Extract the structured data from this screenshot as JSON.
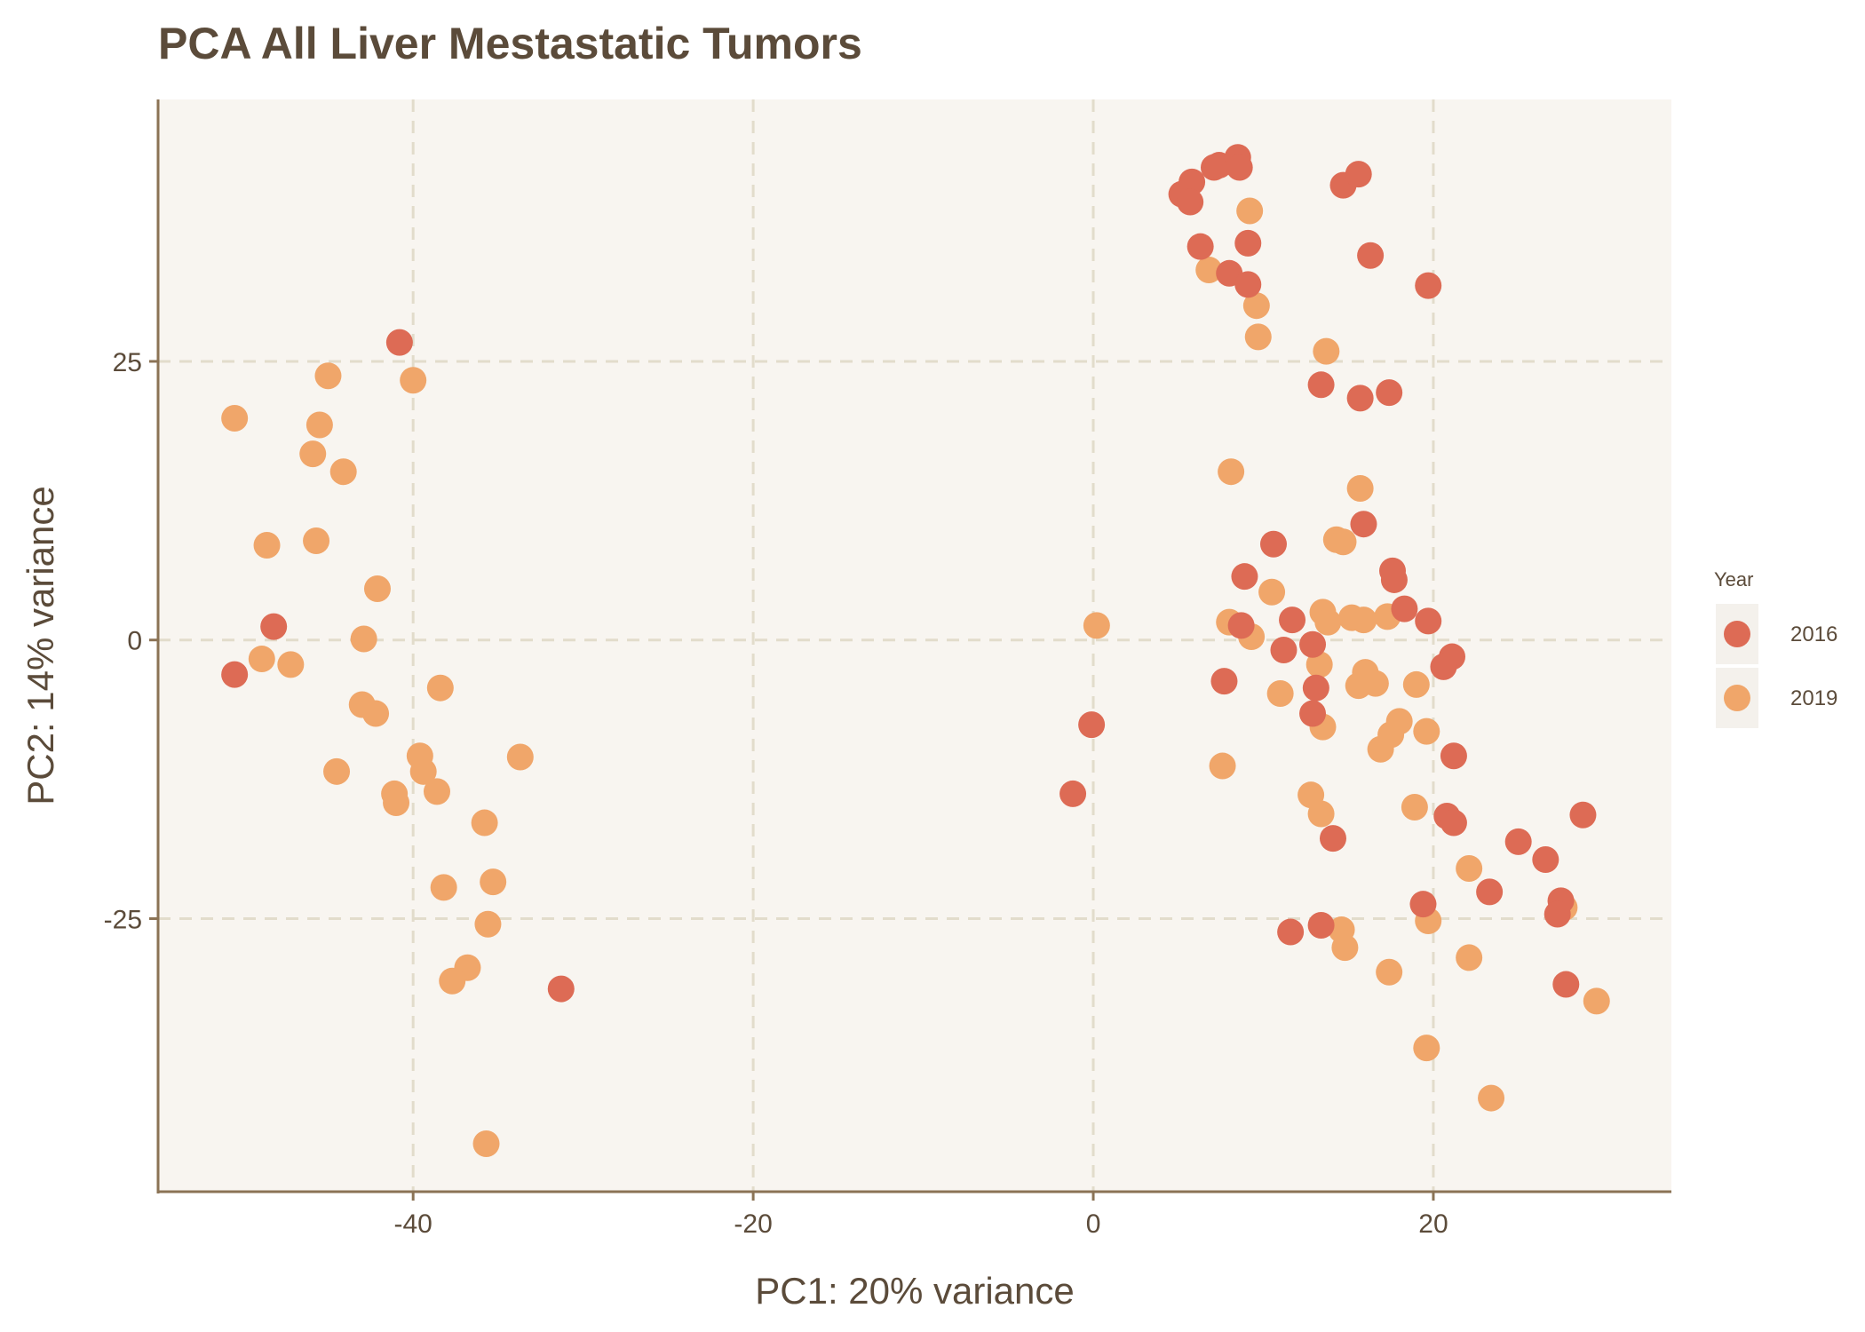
{
  "chart_data": {
    "type": "scatter",
    "title": "PCA All Liver Mestastatic Tumors",
    "xlabel": "PC1: 20% variance",
    "ylabel": "PC2: 14% variance",
    "xlim": [
      -55,
      34
    ],
    "ylim": [
      -49.5,
      48.5
    ],
    "x_ticks": [
      -40,
      -20,
      0,
      20
    ],
    "y_ticks": [
      -25,
      0,
      25
    ],
    "x_tick_labels": [
      "-40",
      "-20",
      "0",
      "20"
    ],
    "y_tick_labels": [
      "-25",
      "0",
      "25"
    ],
    "grid": true,
    "legend": {
      "title": "Year",
      "position": "right"
    },
    "series": [
      {
        "name": "2019",
        "color": "#f0a66a",
        "points": [
          [
            -50.5,
            19.9
          ],
          [
            -45,
            23.7
          ],
          [
            -45.5,
            19.3
          ],
          [
            -45.9,
            16.7
          ],
          [
            -44.1,
            15.1
          ],
          [
            -40,
            23.3
          ],
          [
            -48.6,
            8.5
          ],
          [
            -45.7,
            8.9
          ],
          [
            -42.1,
            4.6
          ],
          [
            -42.9,
            0.1
          ],
          [
            -48.9,
            -1.7
          ],
          [
            -47.2,
            -2.2
          ],
          [
            -38.4,
            -4.3
          ],
          [
            -43,
            -5.8
          ],
          [
            -42.2,
            -6.6
          ],
          [
            -44.5,
            -11.8
          ],
          [
            -39.6,
            -10.4
          ],
          [
            -39.4,
            -11.8
          ],
          [
            -41.1,
            -13.8
          ],
          [
            -41,
            -14.6
          ],
          [
            -38.6,
            -13.6
          ],
          [
            -33.7,
            -10.5
          ],
          [
            -35.8,
            -16.4
          ],
          [
            -35.3,
            -21.7
          ],
          [
            -38.2,
            -22.2
          ],
          [
            -35.6,
            -25.5
          ],
          [
            -36.8,
            -29.4
          ],
          [
            -37.7,
            -30.6
          ],
          [
            -35.7,
            -45.2
          ],
          [
            0.2,
            1.3
          ],
          [
            9.2,
            38.5
          ],
          [
            6.8,
            33.2
          ],
          [
            9.6,
            30
          ],
          [
            9.7,
            27.2
          ],
          [
            13.7,
            25.9
          ],
          [
            8.1,
            15.1
          ],
          [
            15.7,
            13.6
          ],
          [
            14.3,
            9
          ],
          [
            14.7,
            8.8
          ],
          [
            10.5,
            4.3
          ],
          [
            8,
            1.6
          ],
          [
            9.3,
            0.3
          ],
          [
            13.5,
            2.5
          ],
          [
            13.8,
            1.6
          ],
          [
            15.2,
            2
          ],
          [
            15.9,
            1.8
          ],
          [
            17.3,
            2.1
          ],
          [
            13.3,
            -2.2
          ],
          [
            16,
            -2.9
          ],
          [
            11,
            -4.8
          ],
          [
            15.6,
            -4.1
          ],
          [
            16.6,
            -3.9
          ],
          [
            19,
            -4
          ],
          [
            13.5,
            -7.8
          ],
          [
            18,
            -7.3
          ],
          [
            17.5,
            -8.5
          ],
          [
            19.6,
            -8.2
          ],
          [
            16.9,
            -9.8
          ],
          [
            7.6,
            -11.3
          ],
          [
            12.8,
            -13.9
          ],
          [
            13.4,
            -15.6
          ],
          [
            18.9,
            -15
          ],
          [
            22.1,
            -20.5
          ],
          [
            14.6,
            -26
          ],
          [
            14.8,
            -27.6
          ],
          [
            19.7,
            -25.2
          ],
          [
            17.4,
            -29.8
          ],
          [
            22.1,
            -28.5
          ],
          [
            19.6,
            -36.6
          ],
          [
            23.4,
            -41.1
          ],
          [
            27.7,
            -24
          ],
          [
            29.6,
            -32.4
          ]
        ]
      },
      {
        "name": "2016",
        "color": "#dd6b55",
        "points": [
          [
            -40.8,
            26.7
          ],
          [
            -48.2,
            1.2
          ],
          [
            -50.5,
            -3.1
          ],
          [
            -31.3,
            -31.3
          ],
          [
            -1.2,
            -13.8
          ],
          [
            -0.1,
            -7.6
          ],
          [
            5.2,
            40
          ],
          [
            5.8,
            41.1
          ],
          [
            5.7,
            39.3
          ],
          [
            7.1,
            42.4
          ],
          [
            7.4,
            42.6
          ],
          [
            8.5,
            43.3
          ],
          [
            8.6,
            42.4
          ],
          [
            14.7,
            40.8
          ],
          [
            15.6,
            41.8
          ],
          [
            6.3,
            35.3
          ],
          [
            9.1,
            35.6
          ],
          [
            16.3,
            34.5
          ],
          [
            8,
            32.9
          ],
          [
            9.1,
            31.9
          ],
          [
            19.7,
            31.8
          ],
          [
            13.4,
            22.9
          ],
          [
            15.7,
            21.7
          ],
          [
            17.4,
            22.2
          ],
          [
            15.9,
            10.4
          ],
          [
            10.6,
            8.6
          ],
          [
            8.9,
            5.7
          ],
          [
            17.6,
            6.2
          ],
          [
            17.7,
            5.4
          ],
          [
            18.3,
            2.8
          ],
          [
            8.7,
            1.3
          ],
          [
            11.7,
            1.8
          ],
          [
            19.7,
            1.7
          ],
          [
            11.2,
            -0.9
          ],
          [
            12.9,
            -0.4
          ],
          [
            21.1,
            -1.5
          ],
          [
            20.6,
            -2.4
          ],
          [
            7.7,
            -3.7
          ],
          [
            13.1,
            -4.3
          ],
          [
            12.9,
            -6.6
          ],
          [
            21.2,
            -10.4
          ],
          [
            20.8,
            -15.8
          ],
          [
            21.2,
            -16.4
          ],
          [
            14.1,
            -17.8
          ],
          [
            25,
            -18.1
          ],
          [
            26.6,
            -19.7
          ],
          [
            28.8,
            -15.7
          ],
          [
            23.3,
            -22.6
          ],
          [
            19.4,
            -23.7
          ],
          [
            27.5,
            -23.4
          ],
          [
            27.3,
            -24.6
          ],
          [
            11.6,
            -26.2
          ],
          [
            13.4,
            -25.6
          ],
          [
            27.8,
            -30.9
          ]
        ]
      }
    ]
  }
}
